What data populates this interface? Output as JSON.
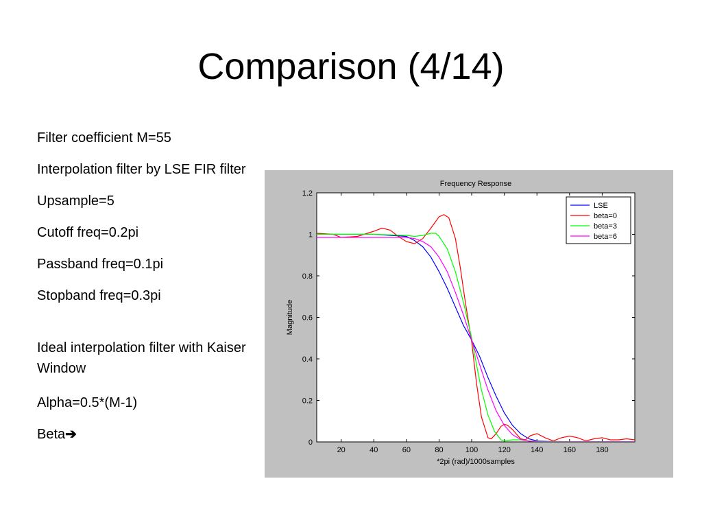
{
  "slide": {
    "title": "Comparison (4/14)",
    "bullets": [
      "Filter coefficient M=55",
      "Interpolation filter by LSE FIR filter",
      "Upsample=5",
      "Cutoff freq=0.2pi",
      "Passband freq=0.1pi",
      "Stopband freq=0.3pi"
    ],
    "ideal_text": "Ideal interpolation filter with Kaiser Window",
    "alpha_text": "Alpha=0.5*(M-1)",
    "beta_text": "Beta",
    "beta_arrow": "➔"
  },
  "chart_data": {
    "type": "line",
    "title": "Frequency Response",
    "xlabel": "*2pi (rad)/1000samples",
    "ylabel": "Magnitude",
    "xlim": [
      5,
      200
    ],
    "ylim": [
      0,
      1.2
    ],
    "xticks": [
      20,
      40,
      60,
      80,
      100,
      120,
      140,
      160,
      180
    ],
    "yticks": [
      0,
      0.2,
      0.4,
      0.6,
      0.8,
      1,
      1.2
    ],
    "ytick_labels": [
      "0",
      "0.2",
      "0.4",
      "0.6",
      "0.8",
      "1",
      "1.2"
    ],
    "grid": false,
    "legend_position": "top-right",
    "series": [
      {
        "name": "LSE",
        "color": "#0000ff",
        "x": [
          5,
          20,
          40,
          60,
          65,
          70,
          75,
          80,
          85,
          90,
          95,
          100,
          105,
          110,
          115,
          120,
          125,
          130,
          135,
          140,
          150,
          160,
          180,
          200
        ],
        "y": [
          1.0,
          1.0,
          1.0,
          0.99,
          0.97,
          0.94,
          0.89,
          0.82,
          0.74,
          0.65,
          0.56,
          0.49,
          0.41,
          0.31,
          0.22,
          0.14,
          0.08,
          0.04,
          0.015,
          0.005,
          0.002,
          0.001,
          0.001,
          0.001
        ]
      },
      {
        "name": "beta=0",
        "color": "#ff0000",
        "x": [
          5,
          15,
          20,
          30,
          40,
          45,
          50,
          55,
          60,
          65,
          70,
          75,
          80,
          83,
          86,
          90,
          93,
          96,
          100,
          103,
          106,
          110,
          112,
          115,
          118,
          120,
          122,
          125,
          130,
          133,
          136,
          140,
          145,
          150,
          155,
          160,
          165,
          170,
          175,
          180,
          185,
          190,
          195,
          200
        ],
        "y": [
          1.005,
          1.0,
          0.985,
          0.99,
          1.015,
          1.03,
          1.02,
          0.99,
          0.965,
          0.955,
          0.98,
          1.03,
          1.085,
          1.095,
          1.08,
          0.98,
          0.84,
          0.68,
          0.48,
          0.28,
          0.12,
          0.02,
          0.015,
          0.04,
          0.075,
          0.085,
          0.08,
          0.06,
          0.015,
          0.01,
          0.03,
          0.04,
          0.02,
          0.005,
          0.02,
          0.028,
          0.02,
          0.005,
          0.015,
          0.02,
          0.01,
          0.01,
          0.015,
          0.01
        ]
      },
      {
        "name": "beta=3",
        "color": "#00ff00",
        "x": [
          5,
          20,
          40,
          60,
          65,
          70,
          75,
          78,
          80,
          85,
          90,
          95,
          100,
          103,
          106,
          110,
          114,
          118,
          120,
          125,
          130,
          135,
          140,
          150,
          160,
          200
        ],
        "y": [
          1.0,
          1.0,
          1.0,
          0.995,
          0.99,
          0.995,
          1.005,
          1.005,
          0.99,
          0.93,
          0.82,
          0.67,
          0.5,
          0.37,
          0.25,
          0.13,
          0.05,
          0.01,
          0.005,
          0.01,
          0.01,
          0.005,
          0.003,
          0.002,
          0.001,
          0.001
        ]
      },
      {
        "name": "beta=6",
        "color": "#ff00ff",
        "x": [
          5,
          20,
          40,
          60,
          65,
          70,
          75,
          80,
          85,
          90,
          95,
          100,
          105,
          110,
          115,
          120,
          125,
          130,
          135,
          140,
          150,
          160,
          200
        ],
        "y": [
          0.985,
          0.985,
          0.985,
          0.985,
          0.98,
          0.965,
          0.94,
          0.89,
          0.82,
          0.72,
          0.61,
          0.49,
          0.37,
          0.25,
          0.15,
          0.08,
          0.035,
          0.012,
          0.004,
          0.001,
          0.0,
          0.0,
          0.0
        ]
      }
    ]
  }
}
